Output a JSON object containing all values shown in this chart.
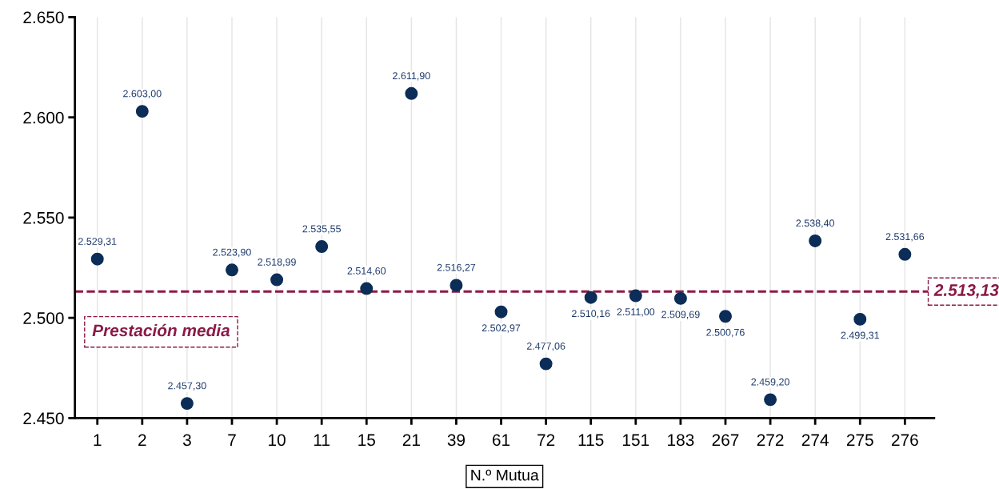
{
  "chart_data": {
    "type": "scatter",
    "xlabel": "N.º Mutua",
    "categories": [
      "1",
      "2",
      "3",
      "7",
      "10",
      "11",
      "15",
      "21",
      "39",
      "61",
      "72",
      "115",
      "151",
      "183",
      "267",
      "272",
      "274",
      "275",
      "276"
    ],
    "series": [
      {
        "color": "#0b2d57",
        "values": [
          2529.31,
          2603.0,
          2457.3,
          2523.9,
          2518.99,
          2535.55,
          2514.6,
          2611.9,
          2516.27,
          2502.97,
          2477.06,
          2510.16,
          2511.0,
          2509.69,
          2500.76,
          2459.2,
          2538.4,
          2499.31,
          2531.66
        ],
        "value_labels": [
          "2.529,31",
          "2.603,00",
          "2.457,30",
          "2.523,90",
          "2.518,99",
          "2.535,55",
          "2.514,60",
          "2.611,90",
          "2.516,27",
          "2.502,97",
          "2.477,06",
          "2.510,16",
          "2.511,00",
          "2.509,69",
          "2.500,76",
          "2.459,20",
          "2.538,40",
          "2.499,31",
          "2.531,66"
        ]
      }
    ],
    "ylim": [
      2450,
      2650
    ],
    "yticks": [
      {
        "value": 2450,
        "label": "2.450"
      },
      {
        "value": 2500,
        "label": "2.500"
      },
      {
        "value": 2550,
        "label": "2.550"
      },
      {
        "value": 2600,
        "label": "2.600"
      },
      {
        "value": 2650,
        "label": "2.650"
      }
    ],
    "ref_lines": [
      {
        "axis": "y",
        "value": 2513.13,
        "label": "2.513,13",
        "color": "#8b1a47",
        "line_style": "dashed"
      }
    ],
    "annotations": [
      "Prestación media"
    ],
    "grid": "x",
    "marker": "circle",
    "legend": false
  }
}
